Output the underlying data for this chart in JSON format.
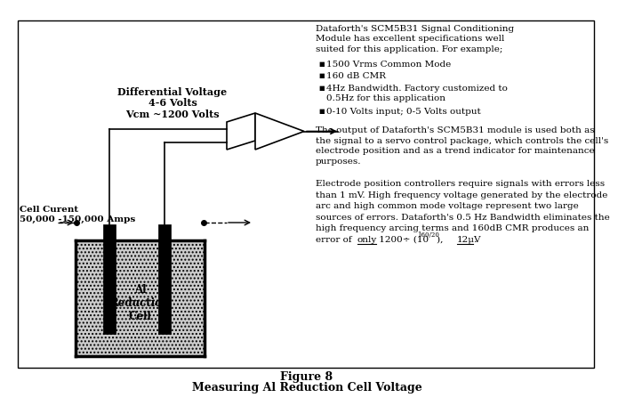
{
  "title_label": "Figure 8",
  "subtitle_label": "Measuring Al Reduction Cell Voltage",
  "background_color": "#ffffff",
  "border_color": "#000000",
  "cell_label": "Al\nReduction\nCell",
  "cell_current_label": "Cell Curent\n50,000 -150,000 Amps",
  "diff_voltage_label": "Differential Voltage\n4-6 Volts\nVcm ~1200 Volts",
  "bullet_header": "Dataforth's SCM5B31 Signal Conditioning\nModule has excellent specifications well\nsuited for this application. For example;",
  "bullets": [
    "1500 Vrms Common Mode",
    "160 dB CMR",
    "4Hz Bandwidth. Factory customized to\n0.5Hz for this application",
    "0-10 Volts input; 0-5 Volts output"
  ],
  "para1": "The output of Dataforth's SCM5B31 module is used both as\nthe signal to a servo control package, which controls the cell's\nelectrode position and as a trend indicator for maintenance\npurposes.",
  "para2_lines": [
    "Electrode position controllers require signals with errors less",
    "than 1 mV. High frequency voltage generated by the electrode",
    "arc and high common mode voltage represent two large",
    "sources of errors. Dataforth's 0.5 Hz Bandwidth eliminates the",
    "high frequency arcing terms and 160dB CMR produces an"
  ],
  "para2_last_prefix": "error of ",
  "para2_only": "only",
  "para2_middle": " 1200÷ (10",
  "para2_superscript": "160/20",
  "para2_suffix": "),   ",
  "para2_uv": "12μV",
  "para2_end": "."
}
